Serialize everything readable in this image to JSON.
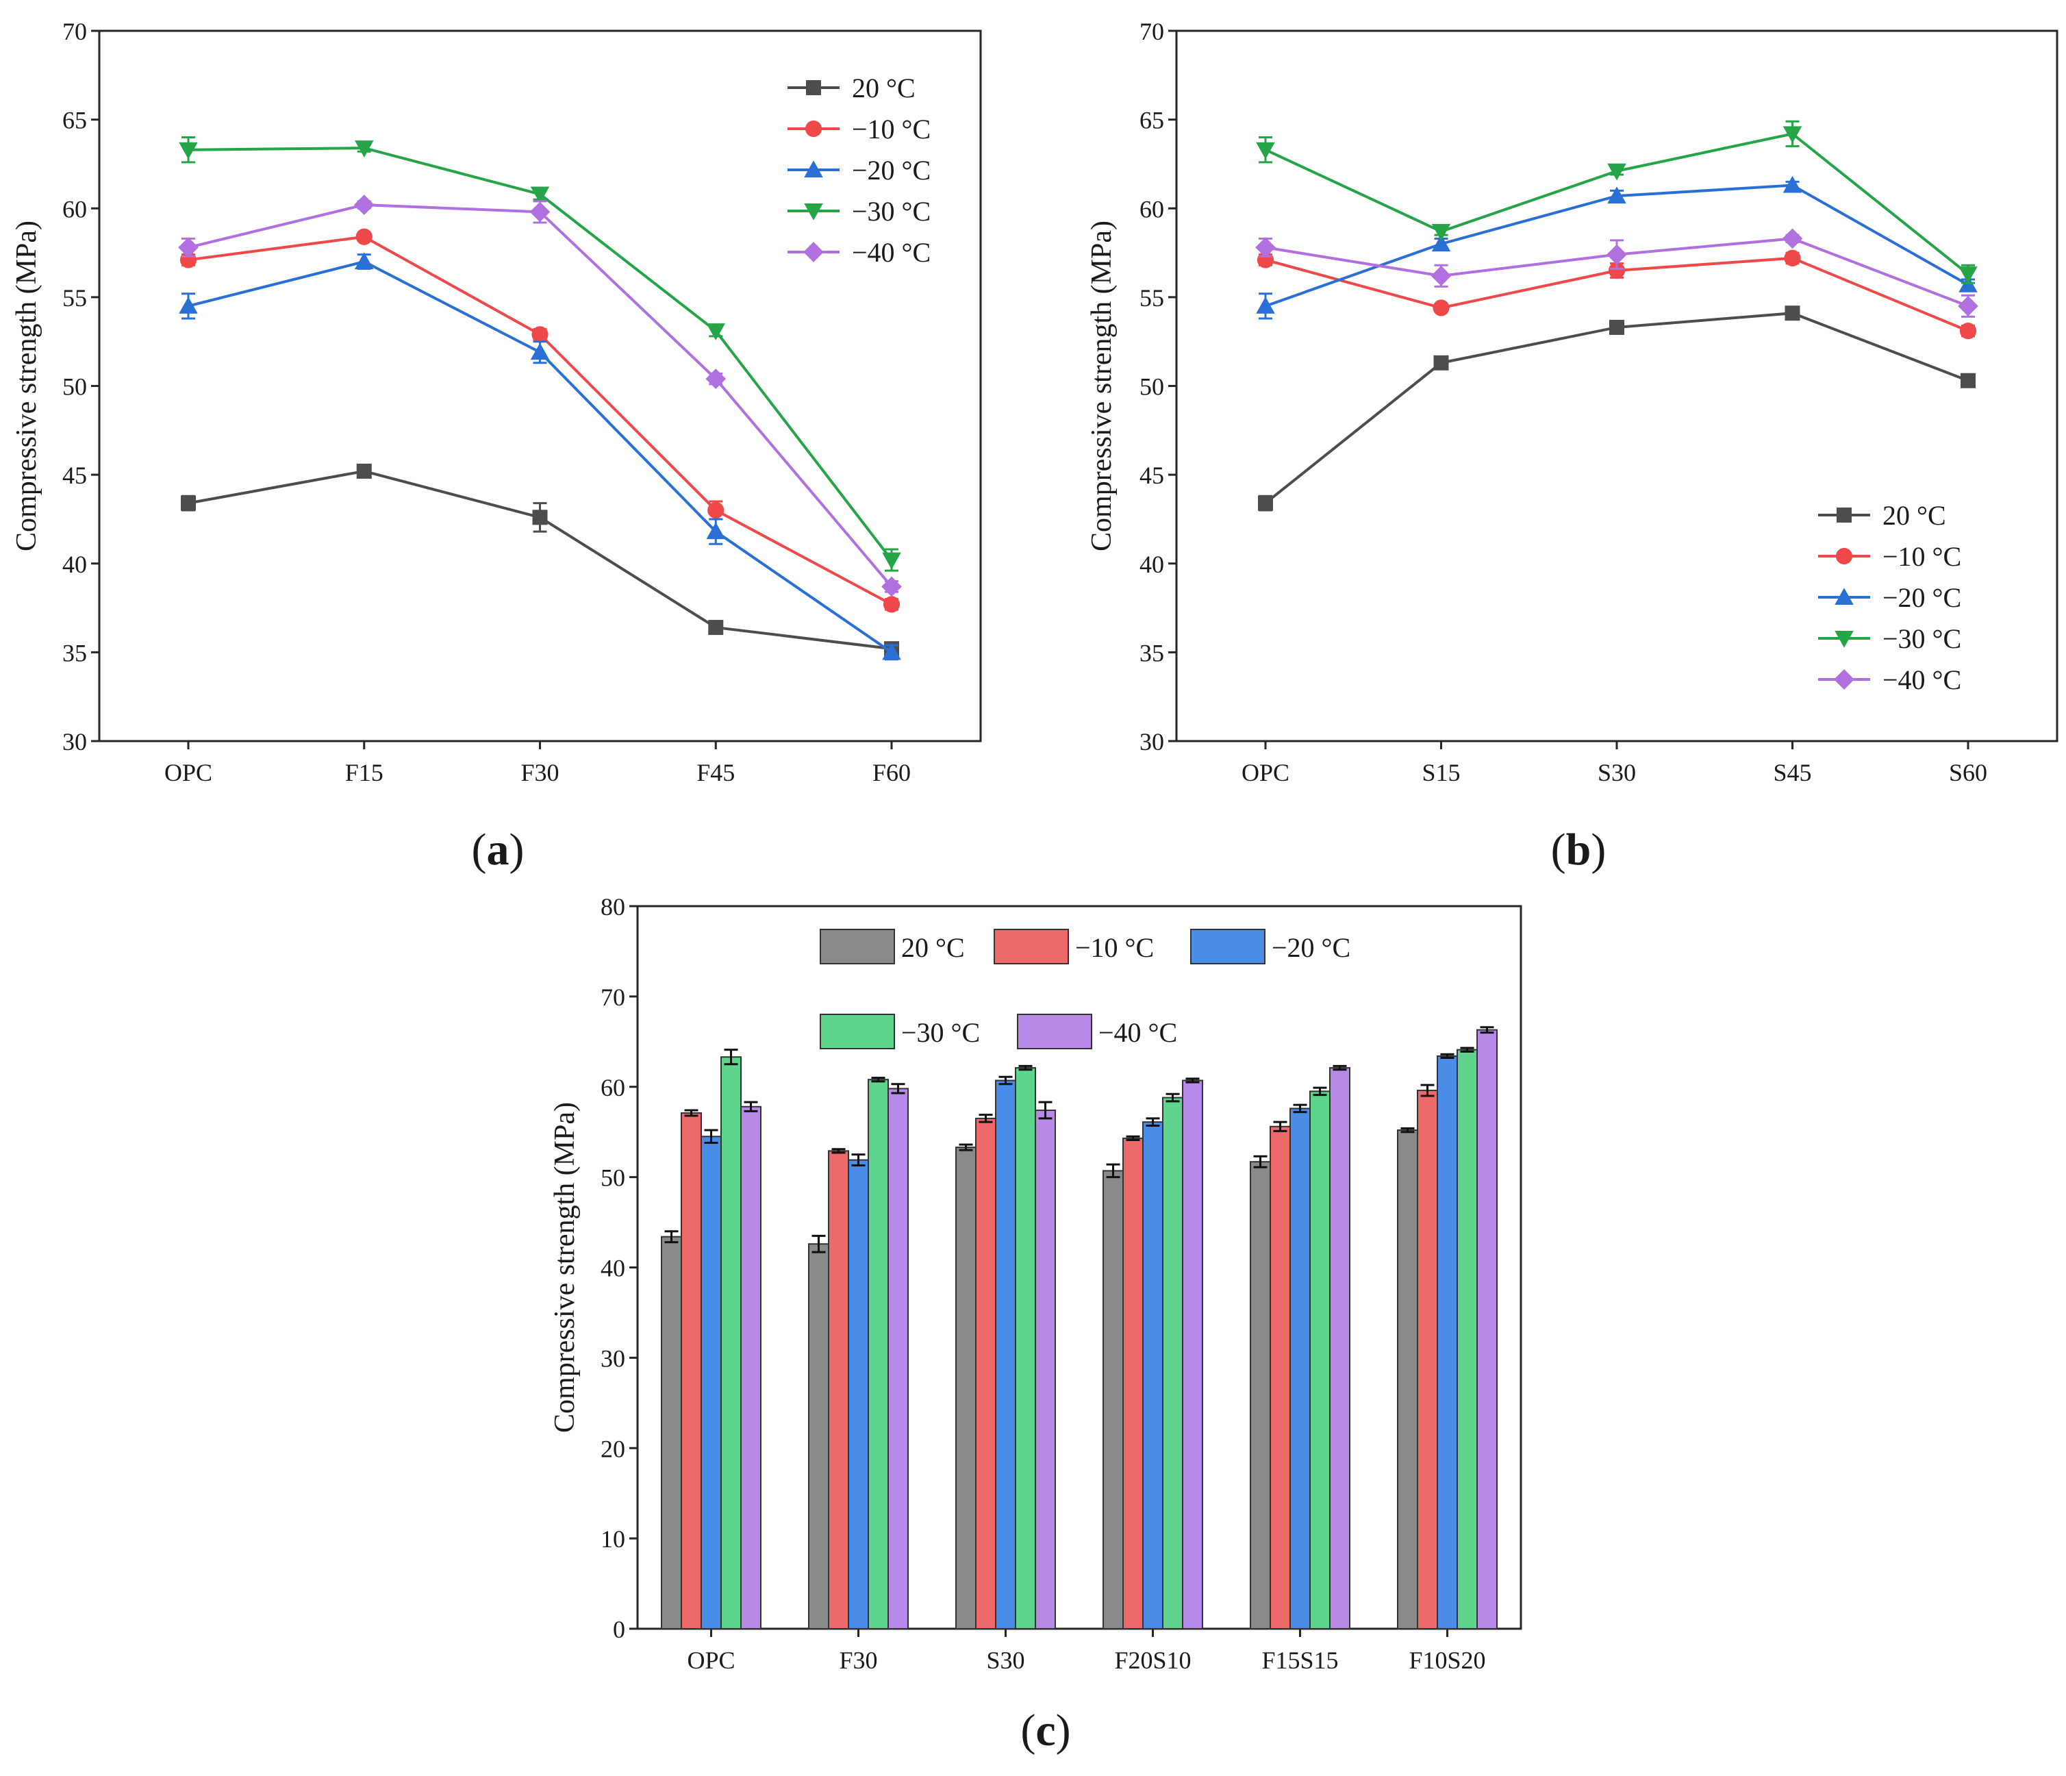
{
  "chart_data": [
    {
      "panel": "a",
      "type": "line",
      "categories": [
        "OPC",
        "F15",
        "F30",
        "F45",
        "F60"
      ],
      "ylabel": "Compressive strength (MPa)",
      "xlabel": "",
      "ylim": [
        30,
        70
      ],
      "yticks": [
        30,
        35,
        40,
        45,
        50,
        55,
        60,
        65,
        70
      ],
      "legend_position": "top-right",
      "series": [
        {
          "name": "20 °C",
          "color": "#4d4d4d",
          "marker": "square",
          "values": [
            43.4,
            45.2,
            42.6,
            36.4,
            35.2
          ],
          "errors": [
            0.4,
            0.3,
            0.8,
            0.3,
            0.3
          ]
        },
        {
          "name": "−10 °C",
          "color": "#f04848",
          "marker": "circle",
          "values": [
            57.1,
            58.4,
            52.9,
            43.0,
            37.7
          ],
          "errors": [
            0.3,
            0.2,
            0.3,
            0.5,
            0.3
          ]
        },
        {
          "name": "−20 °C",
          "color": "#2a6fd6",
          "marker": "triangle-up",
          "values": [
            54.5,
            57.0,
            51.9,
            41.8,
            35.0
          ],
          "errors": [
            0.7,
            0.4,
            0.6,
            0.7,
            0.4
          ]
        },
        {
          "name": "−30 °C",
          "color": "#26a448",
          "marker": "triangle-down",
          "values": [
            63.3,
            63.4,
            60.8,
            53.1,
            40.2
          ],
          "errors": [
            0.7,
            0.2,
            0.3,
            0.3,
            0.6
          ]
        },
        {
          "name": "−40 °C",
          "color": "#b070e0",
          "marker": "diamond",
          "values": [
            57.8,
            60.2,
            59.8,
            50.4,
            38.7
          ],
          "errors": [
            0.5,
            0.2,
            0.6,
            0.3,
            0.3
          ]
        }
      ]
    },
    {
      "panel": "b",
      "type": "line",
      "categories": [
        "OPC",
        "S15",
        "S30",
        "S45",
        "S60"
      ],
      "ylabel": "Compressive strength (MPa)",
      "xlabel": "",
      "ylim": [
        30,
        70
      ],
      "yticks": [
        30,
        35,
        40,
        45,
        50,
        55,
        60,
        65,
        70
      ],
      "legend_position": "bottom-right",
      "series": [
        {
          "name": "20 °C",
          "color": "#4d4d4d",
          "marker": "square",
          "values": [
            43.4,
            51.3,
            53.3,
            54.1,
            50.3
          ],
          "errors": [
            0.4,
            0.3,
            0.2,
            0.3,
            0.3
          ]
        },
        {
          "name": "−10 °C",
          "color": "#f04848",
          "marker": "circle",
          "values": [
            57.1,
            54.4,
            56.5,
            57.2,
            53.1
          ],
          "errors": [
            0.3,
            0.2,
            0.4,
            0.3,
            0.3
          ]
        },
        {
          "name": "−20 °C",
          "color": "#2a6fd6",
          "marker": "triangle-up",
          "values": [
            54.5,
            58.0,
            60.7,
            61.3,
            55.7
          ],
          "errors": [
            0.7,
            0.3,
            0.3,
            0.2,
            0.3
          ]
        },
        {
          "name": "−30 °C",
          "color": "#26a448",
          "marker": "triangle-down",
          "values": [
            63.3,
            58.7,
            62.1,
            64.2,
            56.3
          ],
          "errors": [
            0.7,
            0.2,
            0.2,
            0.7,
            0.5
          ]
        },
        {
          "name": "−40 °C",
          "color": "#b070e0",
          "marker": "diamond",
          "values": [
            57.8,
            56.2,
            57.4,
            58.3,
            54.5
          ],
          "errors": [
            0.5,
            0.6,
            0.8,
            0.2,
            0.6
          ]
        }
      ]
    },
    {
      "panel": "c",
      "type": "bar",
      "categories": [
        "OPC",
        "F30",
        "S30",
        "F20S10",
        "F15S15",
        "F10S20"
      ],
      "ylabel": "Compressive strength (MPa)",
      "xlabel": "",
      "ylim": [
        0,
        80
      ],
      "yticks": [
        0,
        10,
        20,
        30,
        40,
        50,
        60,
        70,
        80
      ],
      "legend_position": "top",
      "series": [
        {
          "name": "20 °C",
          "color": "#8a8a8a",
          "values": [
            43.4,
            42.6,
            53.3,
            50.7,
            51.7,
            55.2
          ],
          "errors": [
            0.6,
            0.9,
            0.3,
            0.7,
            0.6,
            0.2
          ]
        },
        {
          "name": "−10 °C",
          "color": "#ee6a6a",
          "values": [
            57.1,
            52.9,
            56.5,
            54.3,
            55.6,
            59.6
          ],
          "errors": [
            0.3,
            0.2,
            0.4,
            0.2,
            0.5,
            0.6
          ]
        },
        {
          "name": "−20 °C",
          "color": "#4a8de8",
          "values": [
            54.5,
            51.9,
            60.7,
            56.1,
            57.6,
            63.4
          ],
          "errors": [
            0.7,
            0.6,
            0.4,
            0.4,
            0.4,
            0.2
          ]
        },
        {
          "name": "−30 °C",
          "color": "#5fd48c",
          "values": [
            63.3,
            60.8,
            62.1,
            58.8,
            59.5,
            64.1
          ],
          "errors": [
            0.8,
            0.2,
            0.2,
            0.4,
            0.4,
            0.2
          ]
        },
        {
          "name": "−40 °C",
          "color": "#b88ae8",
          "values": [
            57.8,
            59.8,
            57.4,
            60.7,
            62.1,
            66.3
          ],
          "errors": [
            0.5,
            0.5,
            0.9,
            0.2,
            0.2,
            0.3
          ]
        }
      ]
    }
  ],
  "panel_labels": [
    {
      "open": "(",
      "letter": "a",
      "close": ")"
    },
    {
      "open": "(",
      "letter": "b",
      "close": ")"
    },
    {
      "open": "(",
      "letter": "c",
      "close": ")"
    }
  ]
}
